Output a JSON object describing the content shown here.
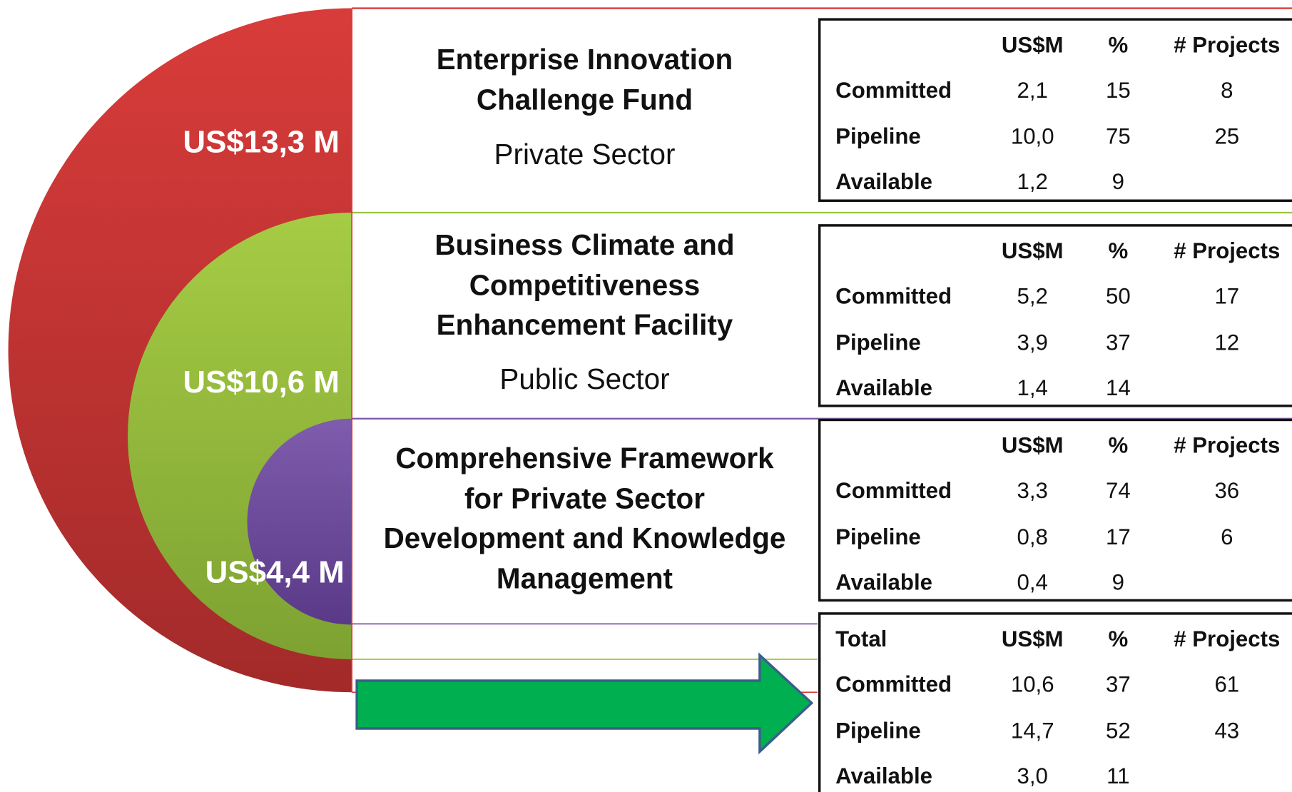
{
  "circles": [
    {
      "label": "US$13,3 M"
    },
    {
      "label": "US$10,6 M"
    },
    {
      "label": "US$4,4 M"
    }
  ],
  "sections": [
    {
      "title_lines": [
        "Enterprise Innovation",
        "Challenge Fund"
      ],
      "subtitle": "Private Sector"
    },
    {
      "title_lines": [
        "Business Climate and",
        "Competitiveness",
        "Enhancement Facility"
      ],
      "subtitle": "Public Sector"
    },
    {
      "title_lines": [
        "Comprehensive Framework",
        "for Private Sector",
        "Development and Knowledge",
        "Management"
      ]
    }
  ],
  "tables": [
    {
      "header": [
        "US$M",
        "%",
        "# Projects"
      ],
      "rows": [
        [
          "Committed",
          "2,1",
          "15",
          "8"
        ],
        [
          "Pipeline",
          "10,0",
          "75",
          "25"
        ],
        [
          "Available",
          "1,2",
          "9"
        ]
      ]
    },
    {
      "header": [
        "US$M",
        "%",
        "# Projects"
      ],
      "rows": [
        [
          "Committed",
          "5,2",
          "50",
          "17"
        ],
        [
          "Pipeline",
          "3,9",
          "37",
          "12"
        ],
        [
          "Available",
          "1,4",
          "14"
        ]
      ]
    },
    {
      "header": [
        "US$M",
        "%",
        "# Projects"
      ],
      "rows": [
        [
          "Committed",
          "3,3",
          "74",
          "36"
        ],
        [
          "Pipeline",
          "0,8",
          "17",
          "6"
        ],
        [
          "Available",
          "0,4",
          "9"
        ]
      ]
    },
    {
      "header": [
        "Total",
        "US$M",
        "%",
        "# Projects"
      ],
      "rows": [
        [
          "Committed",
          "10,6",
          "37",
          "61"
        ],
        [
          "Pipeline",
          "14,7",
          "52",
          "43"
        ],
        [
          "Available",
          "3,0",
          "11"
        ]
      ]
    }
  ]
}
